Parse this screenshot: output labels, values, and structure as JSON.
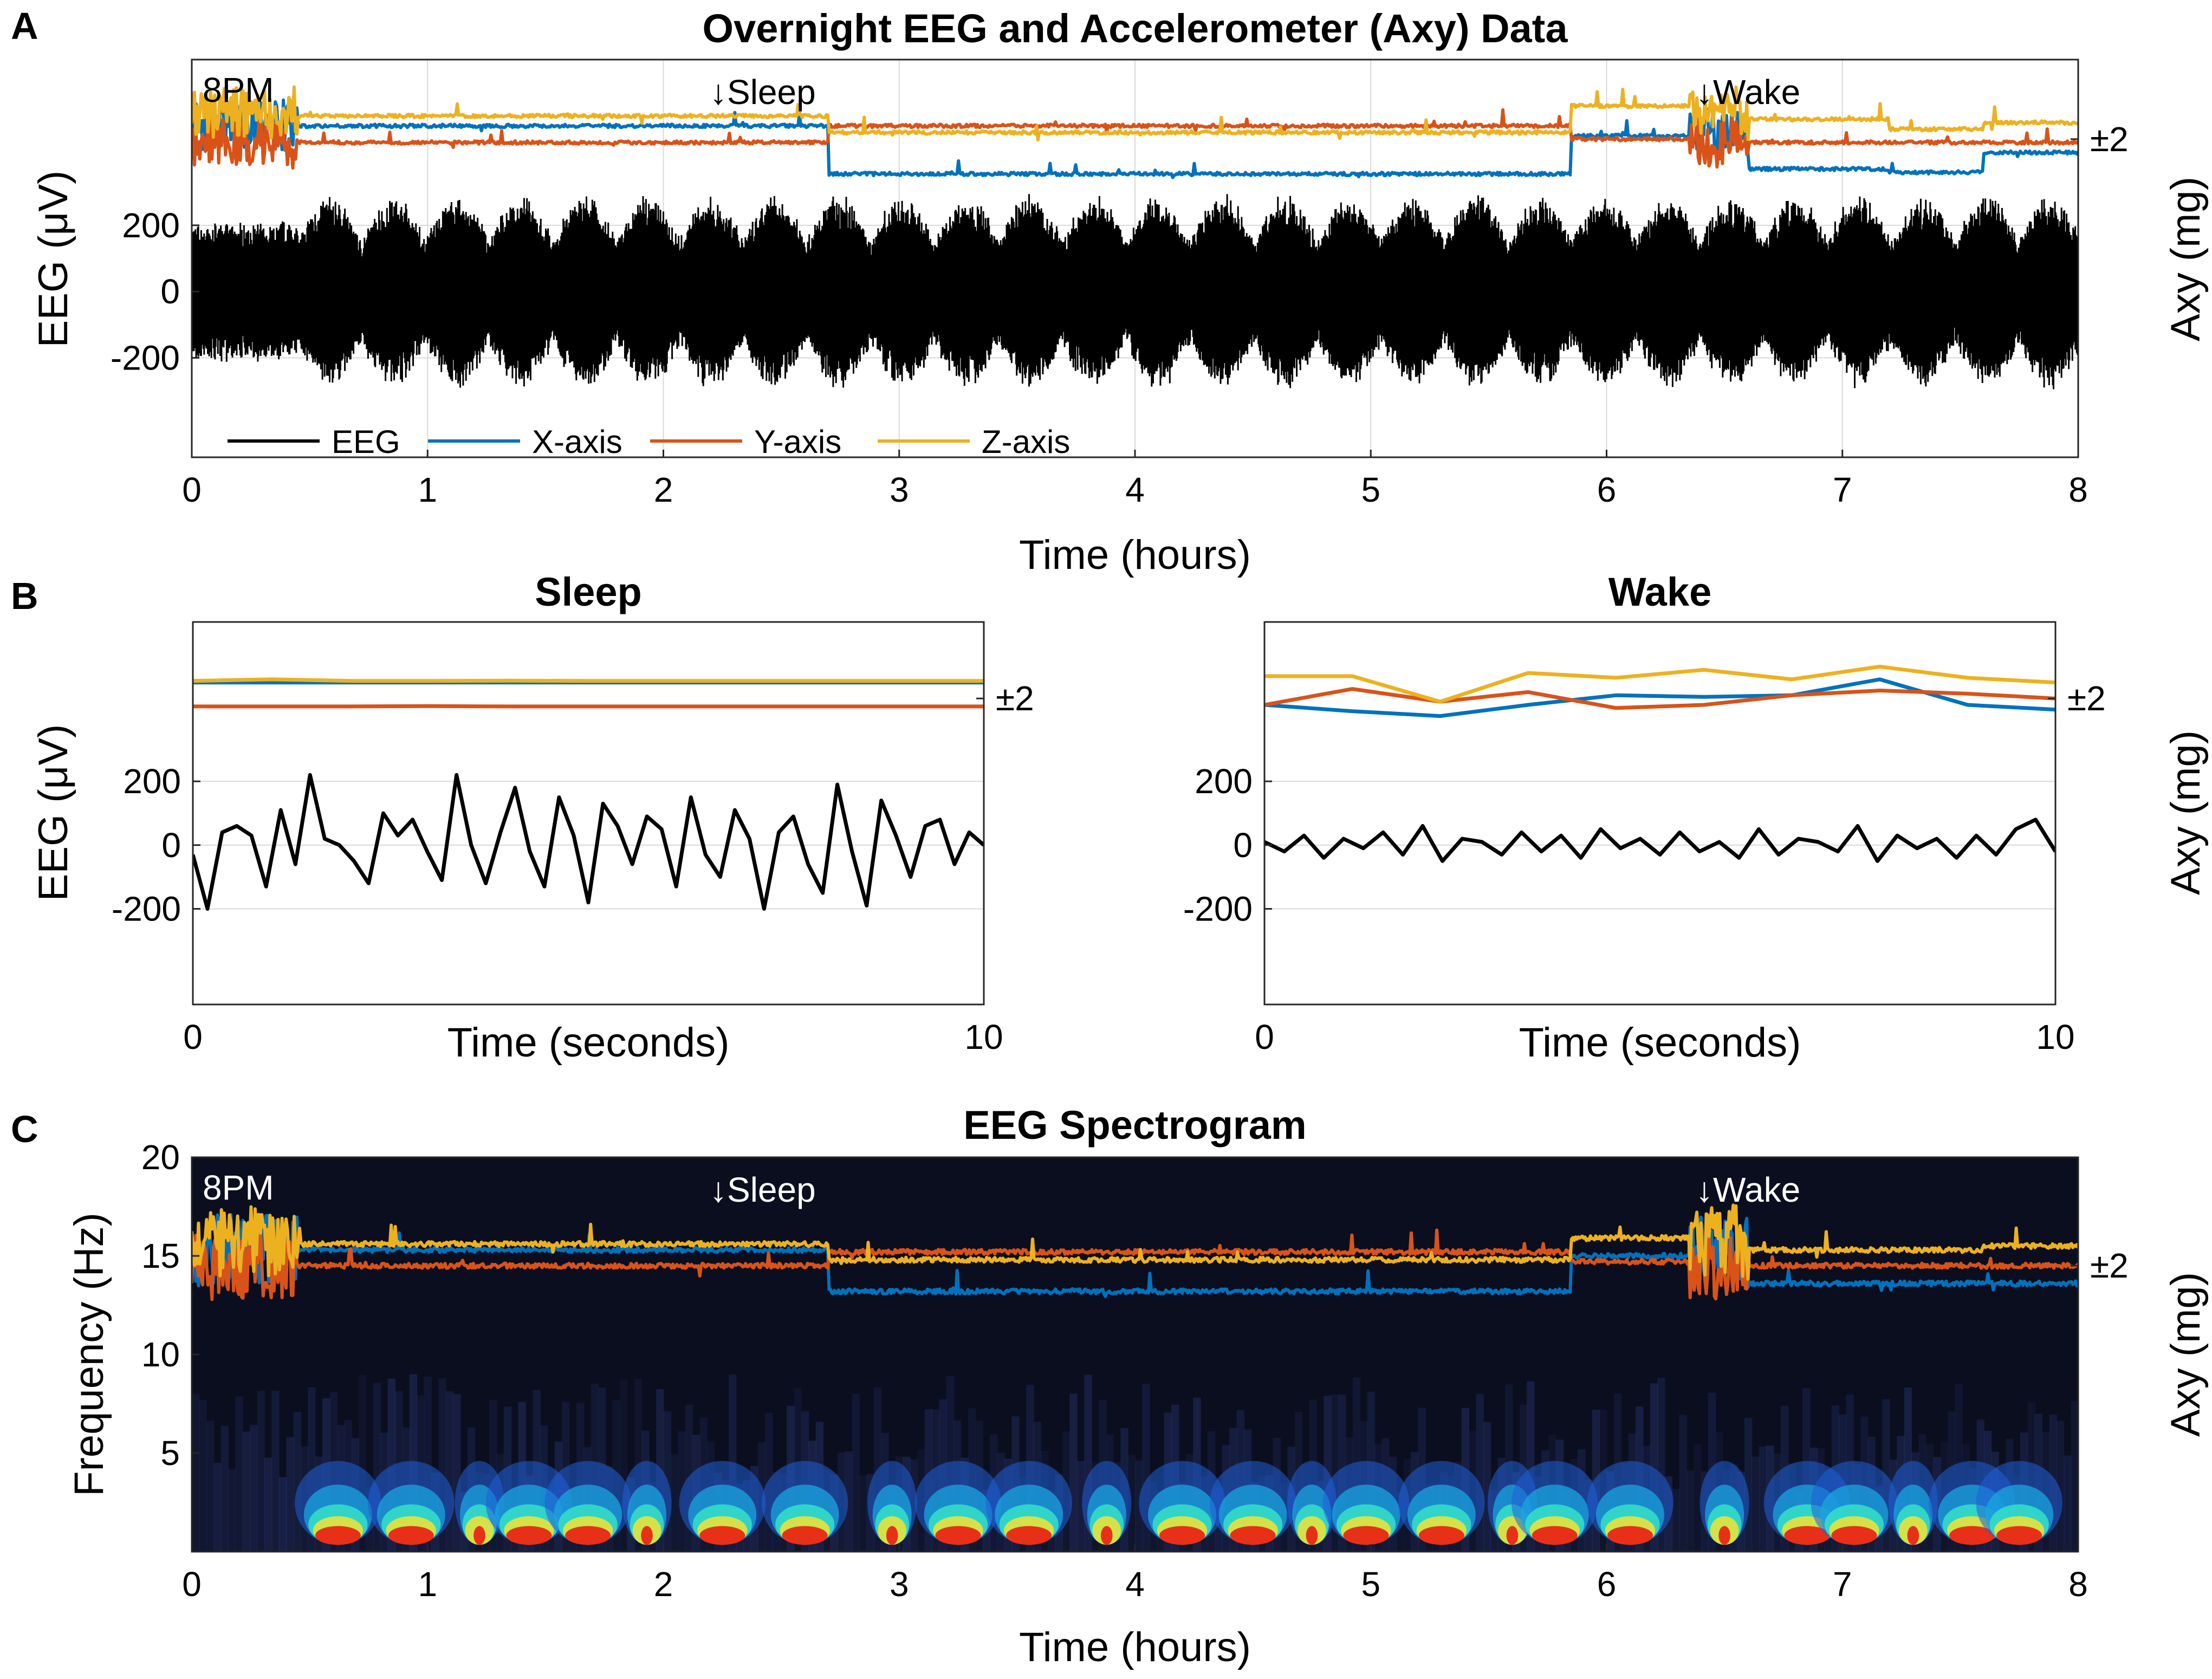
{
  "colors": {
    "eeg": "#000000",
    "x_axis": "#0072BD",
    "y_axis": "#D95319",
    "z_axis": "#EDB120",
    "grid": "#d9d9d9",
    "spectrogram_bg": "#0b0e1e"
  },
  "panels": {
    "A": {
      "letter": "A",
      "title": "Overnight EEG and Accelerometer (Axy) Data"
    },
    "B": {
      "letter": "B",
      "left_title": "Sleep",
      "right_title": "Wake"
    },
    "C": {
      "letter": "C",
      "title": "EEG Spectrogram"
    }
  },
  "chart_data": [
    {
      "id": "A",
      "type": "line",
      "title": "Overnight EEG and Accelerometer (Axy) Data",
      "xlabel": "Time (hours)",
      "ylabel": "EEG (μV)",
      "ylabel_right": "Axy (mg)",
      "xlim": [
        0,
        8
      ],
      "ylim": [
        -500,
        700
      ],
      "xticks": [
        "0",
        "1",
        "2",
        "3",
        "4",
        "5",
        "6",
        "7",
        "8"
      ],
      "yticks": [
        "200",
        "0",
        "-200"
      ],
      "right_tick": "±2",
      "grid": true,
      "annotations": [
        {
          "text": "8PM",
          "x": 0.05
        },
        {
          "text": "↓Sleep",
          "x": 2.2
        },
        {
          "text": "↓Wake",
          "x": 6.4
        }
      ],
      "legend": {
        "placement": "bottom-left",
        "entries": [
          "EEG",
          "X-axis",
          "Y-axis",
          "Z-axis"
        ]
      },
      "series": [
        {
          "name": "X-axis",
          "role": "accel",
          "levels": [
            [
              0,
              0.45,
              500
            ],
            [
              0.45,
              2.7,
              500
            ],
            [
              2.7,
              5.85,
              355
            ],
            [
              5.85,
              6.35,
              470
            ],
            [
              6.35,
              6.6,
              500
            ],
            [
              6.6,
              7.2,
              370
            ],
            [
              7.2,
              7.6,
              360
            ],
            [
              7.6,
              8,
              420
            ]
          ]
        },
        {
          "name": "Y-axis",
          "role": "accel",
          "levels": [
            [
              0,
              0.45,
              450
            ],
            [
              0.45,
              2.7,
              450
            ],
            [
              2.7,
              5.85,
              500
            ],
            [
              5.85,
              6.35,
              460
            ],
            [
              6.35,
              6.6,
              450
            ],
            [
              6.6,
              8,
              450
            ]
          ]
        },
        {
          "name": "Z-axis",
          "role": "accel",
          "levels": [
            [
              0,
              0.45,
              540
            ],
            [
              0.45,
              2.7,
              530
            ],
            [
              2.7,
              5.85,
              480
            ],
            [
              5.85,
              6.35,
              560
            ],
            [
              6.35,
              6.6,
              550
            ],
            [
              6.6,
              7.2,
              520
            ],
            [
              7.2,
              7.6,
              490
            ],
            [
              7.6,
              8,
              510
            ]
          ]
        },
        {
          "name": "EEG",
          "role": "eeg",
          "amplitude_range": [
            -300,
            300
          ],
          "sleep_cycles_start": 0.45
        }
      ]
    },
    {
      "id": "B-sleep",
      "type": "line",
      "title": "Sleep",
      "xlabel": "Time (seconds)",
      "ylabel": "EEG (μV)",
      "xlim": [
        0,
        10
      ],
      "ylim": [
        -500,
        700
      ],
      "xticks": [
        "0",
        "10"
      ],
      "yticks": [
        "200",
        "0",
        "-200"
      ],
      "right_tick": "±2",
      "grid": true,
      "series": [
        {
          "name": "X-axis",
          "values": [
            510,
            510,
            510,
            510,
            510,
            510,
            510,
            510,
            510,
            510,
            510
          ]
        },
        {
          "name": "Y-axis",
          "values": [
            435,
            435,
            435,
            436,
            435,
            435,
            435,
            435,
            435,
            435,
            435
          ]
        },
        {
          "name": "Z-axis",
          "values": [
            515,
            520,
            515,
            515,
            516,
            515,
            515,
            515,
            515,
            515,
            515
          ]
        },
        {
          "name": "EEG",
          "values": [
            -30,
            -200,
            40,
            60,
            30,
            -130,
            110,
            -60,
            220,
            20,
            0,
            -50,
            -120,
            100,
            30,
            80,
            -20,
            -110,
            220,
            0,
            -120,
            40,
            180,
            -20,
            -130,
            150,
            30,
            -180,
            130,
            60,
            -60,
            90,
            50,
            -130,
            150,
            -30,
            -100,
            110,
            20,
            -200,
            40,
            90,
            -60,
            -150,
            190,
            -20,
            -190,
            140,
            30,
            -100,
            60,
            80,
            -60,
            40,
            0
          ]
        }
      ]
    },
    {
      "id": "B-wake",
      "type": "line",
      "title": "Wake",
      "xlabel": "Time (seconds)",
      "ylabel": "Axy (mg)",
      "xlim": [
        0,
        10
      ],
      "ylim": [
        -500,
        700
      ],
      "xticks": [
        "0",
        "10"
      ],
      "yticks": [
        "200",
        "0",
        "-200"
      ],
      "right_tick": "±2",
      "grid": true,
      "series": [
        {
          "name": "X-axis",
          "values": [
            440,
            420,
            405,
            440,
            470,
            465,
            470,
            520,
            440,
            425
          ]
        },
        {
          "name": "Y-axis",
          "values": [
            440,
            490,
            450,
            480,
            430,
            440,
            470,
            485,
            475,
            460
          ]
        },
        {
          "name": "Z-axis",
          "values": [
            530,
            530,
            450,
            540,
            525,
            550,
            520,
            560,
            525,
            510
          ]
        },
        {
          "name": "EEG",
          "values": [
            10,
            -20,
            30,
            -40,
            20,
            -10,
            40,
            -30,
            60,
            -50,
            20,
            10,
            -30,
            40,
            -20,
            30,
            -40,
            50,
            -10,
            20,
            -30,
            40,
            -20,
            10,
            -40,
            50,
            -30,
            20,
            10,
            -20,
            60,
            -50,
            30,
            -10,
            20,
            -40,
            30,
            -30,
            50,
            80,
            -20
          ]
        }
      ]
    },
    {
      "id": "C",
      "type": "heatmap",
      "title": "EEG Spectrogram",
      "xlabel": "Time (hours)",
      "ylabel": "Frequency (Hz)",
      "ylabel_right": "Axy (mg)",
      "xlim": [
        0,
        8
      ],
      "ylim": [
        0,
        20
      ],
      "xticks": [
        "0",
        "1",
        "2",
        "3",
        "4",
        "5",
        "6",
        "7",
        "8"
      ],
      "yticks": [
        "20",
        "15",
        "10",
        "5"
      ],
      "right_tick": "±2",
      "annotations": [
        {
          "text": "8PM",
          "x": 0.05
        },
        {
          "text": "↓Sleep",
          "x": 2.2
        },
        {
          "text": "↓Wake",
          "x": 6.4
        }
      ],
      "colormap": "jet",
      "bursts": [
        0.62,
        0.93,
        1.22,
        1.43,
        1.68,
        1.93,
        2.25,
        2.6,
        2.97,
        3.25,
        3.55,
        3.88,
        4.2,
        4.5,
        4.75,
        4.98,
        5.3,
        5.6,
        5.78,
        6.1,
        6.5,
        6.85,
        7.05,
        7.3,
        7.55,
        7.75
      ],
      "series": [
        {
          "name": "X-axis",
          "levels": [
            [
              0,
              0.45,
              15.3
            ],
            [
              0.45,
              2.7,
              15.3
            ],
            [
              2.7,
              5.85,
              13.2
            ],
            [
              5.85,
              6.35,
              15.0
            ],
            [
              6.35,
              6.6,
              15.3
            ],
            [
              6.6,
              8,
              13.6
            ]
          ]
        },
        {
          "name": "Y-axis",
          "levels": [
            [
              0,
              0.45,
              14.5
            ],
            [
              0.45,
              2.7,
              14.5
            ],
            [
              2.7,
              5.85,
              15.2
            ],
            [
              5.85,
              6.35,
              14.7
            ],
            [
              6.35,
              6.6,
              14.5
            ],
            [
              6.6,
              8,
              14.5
            ]
          ]
        },
        {
          "name": "Z-axis",
          "levels": [
            [
              0,
              0.45,
              15.7
            ],
            [
              0.45,
              2.7,
              15.6
            ],
            [
              2.7,
              5.85,
              14.8
            ],
            [
              5.85,
              6.35,
              15.9
            ],
            [
              6.35,
              6.6,
              15.8
            ],
            [
              6.6,
              7.6,
              15.3
            ],
            [
              7.6,
              8,
              15.5
            ]
          ]
        }
      ]
    }
  ]
}
